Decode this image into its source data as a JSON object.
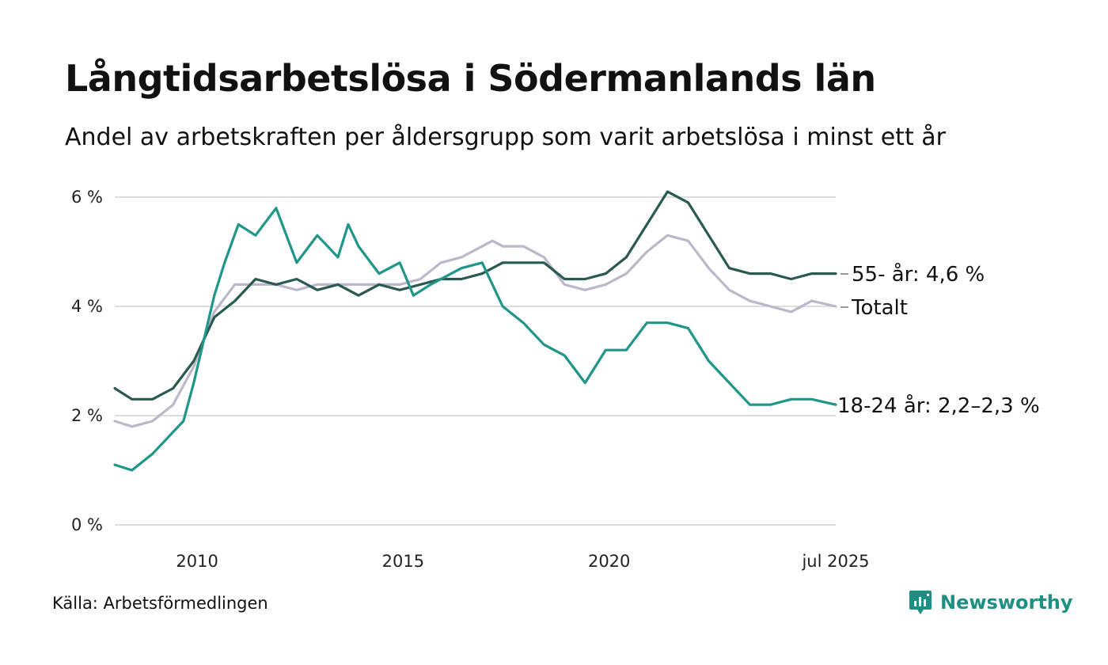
{
  "header": {
    "title": "Långtidsarbetslösa i Södermanlands län",
    "subtitle": "Andel av arbetskraften per åldersgrupp som varit arbetslösa i minst ett år"
  },
  "footer": {
    "source": "Källa: Arbetsförmedlingen",
    "brand": "Newsworthy"
  },
  "colors": {
    "senior": "#2a5a4f",
    "total": "#bdb8c9",
    "young": "#1f9688",
    "grid": "#dedede",
    "brand": "#1f8f83"
  },
  "icons": {
    "brand_logo": "newsworthy-chart-bubble-icon"
  },
  "chart_data": {
    "type": "line",
    "title": "Långtidsarbetslösa i Södermanlands län",
    "subtitle": "Andel av arbetskraften per åldersgrupp som varit arbetslösa i minst ett år",
    "xlabel": "",
    "ylabel": "",
    "ylim": [
      0,
      6
    ],
    "y_ticks": [
      0,
      2,
      4,
      6
    ],
    "y_tick_labels": [
      "0 %",
      "2 %",
      "4 %",
      "6 %"
    ],
    "x_range": [
      "2008-01",
      "2025-07"
    ],
    "x_ticks": [
      "2010-01",
      "2015-01",
      "2020-01",
      "2025-07"
    ],
    "x_tick_labels": [
      "2010",
      "2015",
      "2020",
      "jul 2025"
    ],
    "grid": true,
    "legend": "direct labels at line ends",
    "series": [
      {
        "key": "total",
        "label": "Totalt",
        "color": "#bdb8c9",
        "points": [
          [
            "2008-01",
            1.9
          ],
          [
            "2008-06",
            1.8
          ],
          [
            "2008-12",
            1.9
          ],
          [
            "2009-06",
            2.2
          ],
          [
            "2009-12",
            2.9
          ],
          [
            "2010-06",
            3.9
          ],
          [
            "2010-12",
            4.4
          ],
          [
            "2011-06",
            4.4
          ],
          [
            "2011-12",
            4.4
          ],
          [
            "2012-06",
            4.3
          ],
          [
            "2012-12",
            4.4
          ],
          [
            "2013-06",
            4.4
          ],
          [
            "2013-12",
            4.4
          ],
          [
            "2014-06",
            4.4
          ],
          [
            "2014-12",
            4.4
          ],
          [
            "2015-06",
            4.5
          ],
          [
            "2015-12",
            4.8
          ],
          [
            "2016-06",
            4.9
          ],
          [
            "2016-12",
            5.1
          ],
          [
            "2017-03",
            5.2
          ],
          [
            "2017-06",
            5.1
          ],
          [
            "2017-12",
            5.1
          ],
          [
            "2018-06",
            4.9
          ],
          [
            "2018-12",
            4.4
          ],
          [
            "2019-06",
            4.3
          ],
          [
            "2019-12",
            4.4
          ],
          [
            "2020-06",
            4.6
          ],
          [
            "2020-12",
            5.0
          ],
          [
            "2021-06",
            5.3
          ],
          [
            "2021-12",
            5.2
          ],
          [
            "2022-06",
            4.7
          ],
          [
            "2022-12",
            4.3
          ],
          [
            "2023-06",
            4.1
          ],
          [
            "2023-12",
            4.0
          ],
          [
            "2024-06",
            3.9
          ],
          [
            "2024-12",
            4.1
          ],
          [
            "2025-07",
            4.0
          ]
        ]
      },
      {
        "key": "senior",
        "label": "55- år: 4,6 %",
        "color": "#2a5a4f",
        "points": [
          [
            "2008-01",
            2.5
          ],
          [
            "2008-06",
            2.3
          ],
          [
            "2008-12",
            2.3
          ],
          [
            "2009-06",
            2.5
          ],
          [
            "2009-12",
            3.0
          ],
          [
            "2010-06",
            3.8
          ],
          [
            "2010-12",
            4.1
          ],
          [
            "2011-06",
            4.5
          ],
          [
            "2011-12",
            4.4
          ],
          [
            "2012-06",
            4.5
          ],
          [
            "2012-12",
            4.3
          ],
          [
            "2013-06",
            4.4
          ],
          [
            "2013-12",
            4.2
          ],
          [
            "2014-06",
            4.4
          ],
          [
            "2014-12",
            4.3
          ],
          [
            "2015-06",
            4.4
          ],
          [
            "2015-12",
            4.5
          ],
          [
            "2016-06",
            4.5
          ],
          [
            "2016-12",
            4.6
          ],
          [
            "2017-06",
            4.8
          ],
          [
            "2017-12",
            4.8
          ],
          [
            "2018-06",
            4.8
          ],
          [
            "2018-12",
            4.5
          ],
          [
            "2019-06",
            4.5
          ],
          [
            "2019-12",
            4.6
          ],
          [
            "2020-06",
            4.9
          ],
          [
            "2020-12",
            5.5
          ],
          [
            "2021-06",
            6.1
          ],
          [
            "2021-12",
            5.9
          ],
          [
            "2022-06",
            5.3
          ],
          [
            "2022-12",
            4.7
          ],
          [
            "2023-06",
            4.6
          ],
          [
            "2023-12",
            4.6
          ],
          [
            "2024-06",
            4.5
          ],
          [
            "2024-12",
            4.6
          ],
          [
            "2025-07",
            4.6
          ]
        ]
      },
      {
        "key": "young",
        "label": "18-24 år: 2,2–2,3 %",
        "color": "#1f9688",
        "points": [
          [
            "2008-01",
            1.1
          ],
          [
            "2008-06",
            1.0
          ],
          [
            "2008-12",
            1.3
          ],
          [
            "2009-06",
            1.7
          ],
          [
            "2009-09",
            1.9
          ],
          [
            "2009-12",
            2.6
          ],
          [
            "2010-06",
            4.2
          ],
          [
            "2010-09",
            4.8
          ],
          [
            "2011-01",
            5.5
          ],
          [
            "2011-06",
            5.3
          ],
          [
            "2011-12",
            5.8
          ],
          [
            "2012-06",
            4.8
          ],
          [
            "2012-12",
            5.3
          ],
          [
            "2013-06",
            4.9
          ],
          [
            "2013-09",
            5.5
          ],
          [
            "2013-12",
            5.1
          ],
          [
            "2014-06",
            4.6
          ],
          [
            "2014-12",
            4.8
          ],
          [
            "2015-04",
            4.2
          ],
          [
            "2015-09",
            4.4
          ],
          [
            "2016-06",
            4.7
          ],
          [
            "2016-12",
            4.8
          ],
          [
            "2017-06",
            4.0
          ],
          [
            "2017-12",
            3.7
          ],
          [
            "2018-06",
            3.3
          ],
          [
            "2018-12",
            3.1
          ],
          [
            "2019-06",
            2.6
          ],
          [
            "2019-12",
            3.2
          ],
          [
            "2020-06",
            3.2
          ],
          [
            "2020-12",
            3.7
          ],
          [
            "2021-06",
            3.7
          ],
          [
            "2021-12",
            3.6
          ],
          [
            "2022-06",
            3.0
          ],
          [
            "2022-12",
            2.6
          ],
          [
            "2023-06",
            2.2
          ],
          [
            "2023-12",
            2.2
          ],
          [
            "2024-06",
            2.3
          ],
          [
            "2024-12",
            2.3
          ],
          [
            "2025-07",
            2.2
          ]
        ]
      }
    ]
  }
}
